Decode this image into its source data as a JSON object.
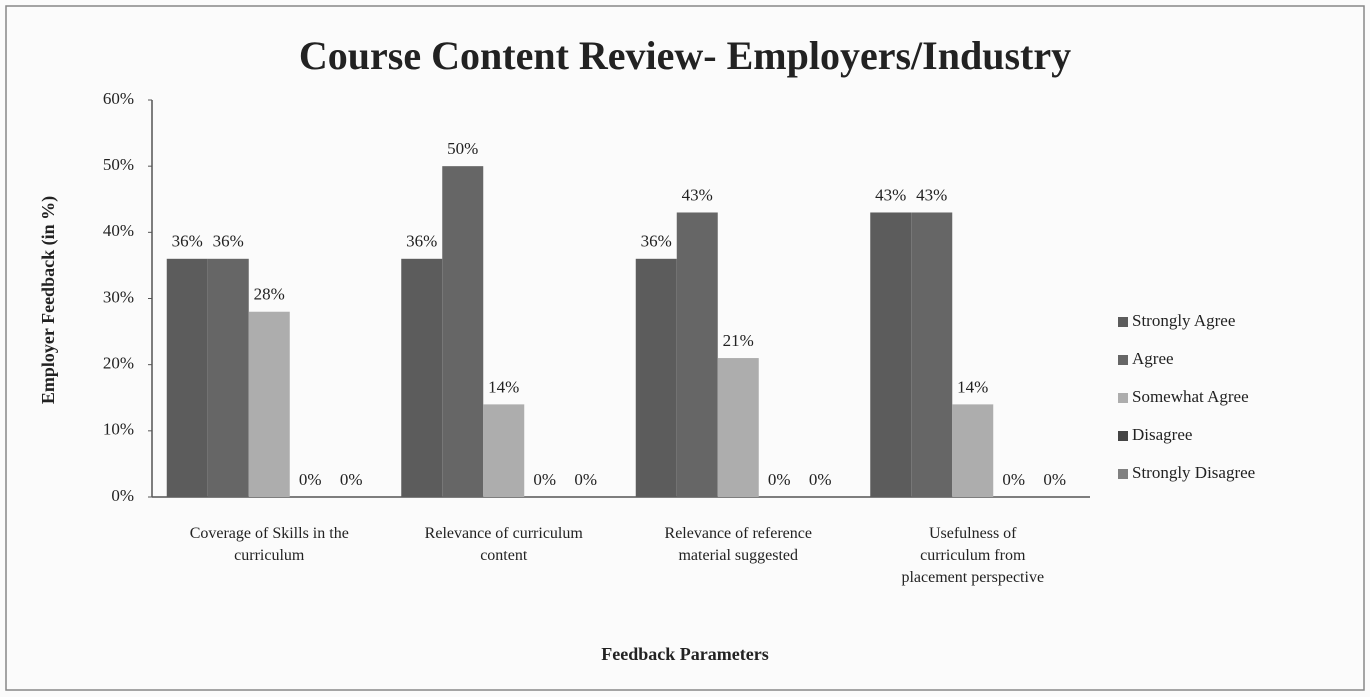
{
  "chart_data": {
    "type": "bar",
    "title": "Course Content Review- Employers/Industry",
    "x_label": "Feedback Parameters",
    "y_label": "Employer Feedback (in %)",
    "categories": [
      "Coverage of Skills in the curriculum",
      "Relevance of curriculum content",
      "Relevance of reference material suggested",
      "Usefulness of curriculum from placement perspective"
    ],
    "series": [
      {
        "name": "Strongly Agree",
        "color": "#5c5c5c",
        "values": [
          36,
          36,
          36,
          43
        ],
        "value_labels": [
          "36%",
          "36%",
          "36%",
          "43%"
        ]
      },
      {
        "name": "Agree",
        "color": "#666666",
        "values": [
          36,
          50,
          43,
          43
        ],
        "value_labels": [
          "36%",
          "50%",
          "43%",
          "43%"
        ]
      },
      {
        "name": "Somewhat Agree",
        "color": "#adadad",
        "values": [
          28,
          14,
          21,
          14
        ],
        "value_labels": [
          "28%",
          "14%",
          "21%",
          "14%"
        ]
      },
      {
        "name": "Disagree",
        "color": "#444444",
        "values": [
          0,
          0,
          0,
          0
        ],
        "value_labels": [
          "0%",
          "0%",
          "0%",
          "0%"
        ]
      },
      {
        "name": "Strongly Disagree",
        "color": "#808080",
        "values": [
          0,
          0,
          0,
          0
        ],
        "value_labels": [
          "0%",
          "0%",
          "0%",
          "0%"
        ]
      }
    ],
    "ylim": [
      0,
      60
    ],
    "yticks": [
      {
        "value": 0,
        "label": "0%"
      },
      {
        "value": 10,
        "label": "10%"
      },
      {
        "value": 20,
        "label": "20%"
      },
      {
        "value": 30,
        "label": "30%"
      },
      {
        "value": 40,
        "label": "40%"
      },
      {
        "value": 50,
        "label": "50%"
      },
      {
        "value": 60,
        "label": "60%"
      }
    ],
    "legend": "right"
  }
}
